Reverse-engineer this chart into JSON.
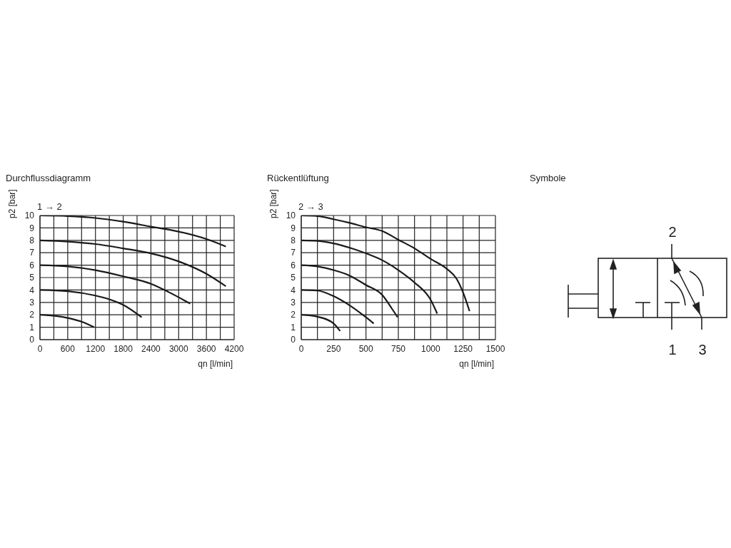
{
  "chart_data": [
    {
      "type": "line",
      "title": "Durchflussdiagramm",
      "subtitle": "1 → 2",
      "xlabel": "qn [l/min]",
      "ylabel": "p2 [bar]",
      "xlim": [
        0,
        4200
      ],
      "ylim": [
        0,
        10
      ],
      "xticks": [
        0,
        {
          "value": 300,
          "label": null
        },
        600,
        {
          "value": 900,
          "label": null
        },
        1200,
        {
          "value": 1500,
          "label": null
        },
        1800,
        {
          "value": 2100,
          "label": null
        },
        2400,
        {
          "value": 2700,
          "label": null
        },
        3000,
        {
          "value": 3300,
          "label": null
        },
        3600,
        {
          "value": 3900,
          "label": null
        },
        4200
      ],
      "yticks": [
        0,
        1,
        2,
        3,
        4,
        5,
        6,
        7,
        8,
        9,
        10
      ],
      "grid": true,
      "marker": "none",
      "line_style": "solid",
      "series": [
        {
          "color": "#1a1a1a",
          "x": [
            0,
            600,
            1200,
            1800,
            2400,
            3000,
            3600,
            4020
          ],
          "values": [
            10,
            9.95,
            9.8,
            9.5,
            9.1,
            8.7,
            8.1,
            7.5
          ]
        },
        {
          "color": "#1a1a1a",
          "x": [
            0,
            600,
            1200,
            1800,
            2400,
            3000,
            3600,
            4020
          ],
          "values": [
            8,
            7.9,
            7.7,
            7.35,
            6.95,
            6.3,
            5.3,
            4.3
          ]
        },
        {
          "color": "#1a1a1a",
          "x": [
            0,
            600,
            1200,
            1800,
            2400,
            2800,
            3250
          ],
          "values": [
            6,
            5.9,
            5.6,
            5.1,
            4.5,
            3.8,
            2.9
          ]
        },
        {
          "color": "#1a1a1a",
          "x": [
            0,
            600,
            1200,
            1500,
            1800,
            2200
          ],
          "values": [
            4,
            3.9,
            3.55,
            3.25,
            2.8,
            1.8
          ]
        },
        {
          "color": "#1a1a1a",
          "x": [
            0,
            600,
            900,
            1170
          ],
          "values": [
            2,
            1.75,
            1.45,
            1.0
          ]
        }
      ]
    },
    {
      "type": "line",
      "title": "Rückentlüftung",
      "subtitle": "2 → 3",
      "xlabel": "qn [l/min]",
      "ylabel": "p2 [bar]",
      "xlim": [
        0,
        1500
      ],
      "ylim": [
        0,
        10
      ],
      "xticks": [
        0,
        {
          "value": 125,
          "label": null
        },
        250,
        {
          "value": 375,
          "label": null
        },
        500,
        {
          "value": 625,
          "label": null
        },
        750,
        {
          "value": 875,
          "label": null
        },
        1000,
        {
          "value": 1125,
          "label": null
        },
        1250,
        {
          "value": 1375,
          "label": null
        },
        1500
      ],
      "yticks": [
        0,
        1,
        2,
        3,
        4,
        5,
        6,
        7,
        8,
        9,
        10
      ],
      "grid": true,
      "marker": "none",
      "line_style": "solid",
      "series": [
        {
          "color": "#1a1a1a",
          "x": [
            0,
            125,
            250,
            375,
            500,
            625,
            750,
            875,
            1000,
            1125,
            1200,
            1250,
            1300
          ],
          "values": [
            10,
            9.95,
            9.7,
            9.4,
            9.05,
            8.75,
            8.05,
            7.35,
            6.5,
            5.7,
            4.9,
            3.8,
            2.3
          ]
        },
        {
          "color": "#1a1a1a",
          "x": [
            0,
            125,
            250,
            375,
            500,
            625,
            750,
            875,
            1000,
            1050
          ],
          "values": [
            8,
            7.95,
            7.75,
            7.4,
            6.95,
            6.4,
            5.6,
            4.6,
            3.2,
            2.1
          ]
        },
        {
          "color": "#1a1a1a",
          "x": [
            0,
            125,
            250,
            375,
            500,
            625,
            700,
            745
          ],
          "values": [
            6,
            5.9,
            5.6,
            5.15,
            4.4,
            3.6,
            2.5,
            1.8
          ]
        },
        {
          "color": "#1a1a1a",
          "x": [
            0,
            125,
            250,
            375,
            500,
            560
          ],
          "values": [
            4,
            3.95,
            3.5,
            2.75,
            1.8,
            1.3
          ]
        },
        {
          "color": "#1a1a1a",
          "x": [
            0,
            125,
            250,
            300
          ],
          "values": [
            2,
            1.85,
            1.3,
            0.7
          ]
        }
      ]
    },
    {
      "type": "other",
      "title": "Symbole",
      "annotations": [
        "2",
        "1",
        "3"
      ]
    }
  ]
}
